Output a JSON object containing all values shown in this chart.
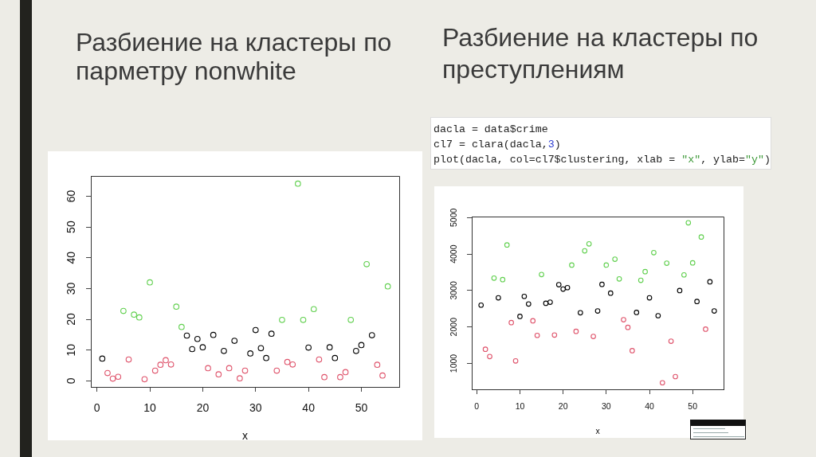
{
  "chart_data": [
    {
      "type": "scatter",
      "title": "Разбиение на кластеры по парметру nonwhite",
      "xlabel": "x",
      "xlim": [
        -1.16,
        57.16
      ],
      "ylim": [
        -2.0,
        66.6
      ],
      "xticks": [
        0,
        10,
        20,
        30,
        40,
        50
      ],
      "yticks": [
        0,
        10,
        20,
        30,
        40,
        50,
        60
      ],
      "marker": "circle",
      "series": [
        {
          "color": "#000000",
          "x": [
            1,
            17,
            18,
            19,
            20,
            22,
            24,
            26,
            29,
            30,
            31,
            32,
            33,
            40,
            44,
            45,
            49,
            50,
            52
          ],
          "values": [
            7.2,
            14.7,
            10.3,
            13.6,
            10.9,
            14.9,
            9.7,
            13.0,
            8.9,
            16.5,
            10.6,
            7.4,
            15.3,
            10.8,
            10.9,
            7.4,
            9.7,
            11.6,
            14.8
          ]
        },
        {
          "color": "#df536b",
          "x": [
            2,
            3,
            4,
            6,
            9,
            11,
            12,
            13,
            14,
            21,
            23,
            25,
            27,
            28,
            34,
            36,
            37,
            42,
            43,
            46,
            47,
            53,
            54
          ],
          "values": [
            2.5,
            0.7,
            1.3,
            6.9,
            0.5,
            3.3,
            5.2,
            6.7,
            5.3,
            4.1,
            2.1,
            4.1,
            0.8,
            3.3,
            3.3,
            6.1,
            5.3,
            6.9,
            1.2,
            1.2,
            2.8,
            5.2,
            1.7
          ]
        },
        {
          "color": "#61d04f",
          "x": [
            5,
            7,
            8,
            10,
            15,
            16,
            35,
            38,
            39,
            41,
            48,
            51,
            55
          ],
          "values": [
            22.7,
            21.5,
            20.6,
            32.0,
            24.1,
            17.5,
            19.8,
            64.1,
            19.8,
            23.3,
            19.8,
            37.9,
            30.7
          ]
        }
      ]
    },
    {
      "type": "scatter",
      "title": "Разбиение на кластеры по преступлениям",
      "xlabel": "x",
      "xlim": [
        -1.16,
        57.16
      ],
      "ylim": [
        290,
        5030
      ],
      "xticks": [
        0,
        10,
        20,
        30,
        40,
        50
      ],
      "yticks": [
        1000,
        2000,
        3000,
        4000,
        5000
      ],
      "marker": "circle",
      "annotations": [
        "dacla = data$crime",
        "cl7 = clara(dacla,3)",
        "plot(dacla, col=cl7$clustering, xlab = \"x\", ylab=\"y\")"
      ],
      "series": [
        {
          "color": "#000000",
          "x": [
            1,
            5,
            10,
            11,
            12,
            16,
            17,
            19,
            20,
            21,
            24,
            28,
            29,
            31,
            37,
            40,
            42,
            47,
            51,
            54,
            55
          ],
          "values": [
            2600,
            2800,
            2290,
            2840,
            2630,
            2650,
            2680,
            3160,
            3040,
            3080,
            2390,
            2440,
            3170,
            2930,
            2400,
            2800,
            2310,
            3000,
            2700,
            3240,
            2440
          ]
        },
        {
          "color": "#df536b",
          "x": [
            2,
            3,
            8,
            9,
            13,
            14,
            18,
            23,
            27,
            34,
            35,
            36,
            43,
            45,
            46,
            53
          ],
          "values": [
            1390,
            1190,
            2120,
            1070,
            2170,
            1770,
            1780,
            1880,
            1740,
            2200,
            1990,
            1350,
            470,
            1610,
            640,
            1940
          ]
        },
        {
          "color": "#61d04f",
          "x": [
            4,
            6,
            7,
            15,
            22,
            25,
            26,
            30,
            32,
            33,
            38,
            39,
            41,
            44,
            48,
            49,
            50,
            52
          ],
          "values": [
            3340,
            3300,
            4250,
            3440,
            3700,
            4090,
            4280,
            3700,
            3860,
            3320,
            3280,
            3520,
            4040,
            3750,
            3430,
            4860,
            3760,
            4470
          ]
        }
      ]
    }
  ]
}
